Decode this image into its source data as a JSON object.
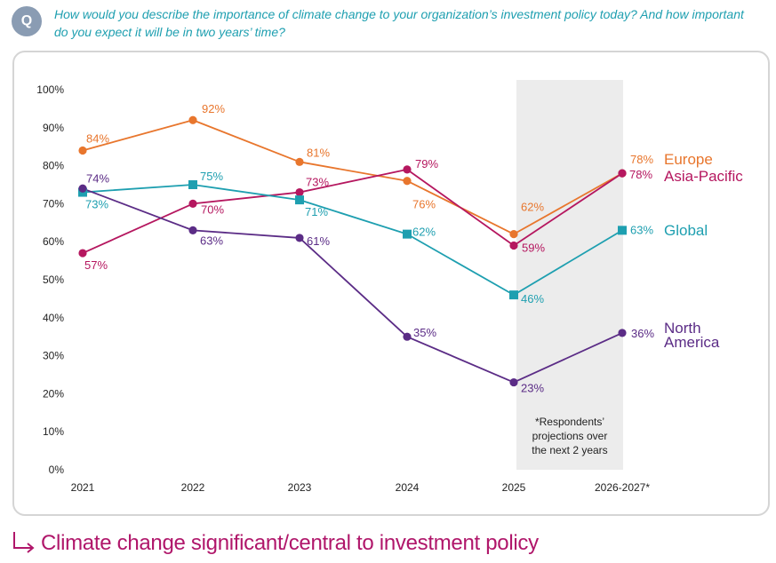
{
  "header": {
    "badge": "Q",
    "question": "How would you describe the importance of climate change to your organization’s investment policy today? And how important do you expect it will be in two years’ time?"
  },
  "footer": {
    "caption": "Climate change significant/central to investment policy"
  },
  "chart_data": {
    "type": "line",
    "categories": [
      "2021",
      "2022",
      "2023",
      "2024",
      "2025",
      "2026-2027*"
    ],
    "ylim": [
      0,
      100
    ],
    "yticks": [
      "0%",
      "10%",
      "20%",
      "30%",
      "40%",
      "50%",
      "60%",
      "70%",
      "80%",
      "90%",
      "100%"
    ],
    "series": [
      {
        "name": "Europe",
        "color": "#e8762d",
        "marker": "circle",
        "values": [
          84,
          92,
          81,
          76,
          62,
          78
        ],
        "labels": [
          "84%",
          "92%",
          "81%",
          "76%",
          "62%",
          "78%"
        ]
      },
      {
        "name": "Asia-Pacific",
        "color": "#b5175f",
        "marker": "circle",
        "values": [
          57,
          70,
          73,
          79,
          59,
          78
        ],
        "labels": [
          "57%",
          "70%",
          "73%",
          "79%",
          "59%",
          "78%"
        ]
      },
      {
        "name": "Global",
        "color": "#1e9fb0",
        "marker": "square",
        "values": [
          73,
          75,
          71,
          62,
          46,
          63
        ],
        "labels": [
          "73%",
          "75%",
          "71%",
          "62%",
          "46%",
          "63%"
        ]
      },
      {
        "name": "North America",
        "color": "#5b2c86",
        "marker": "circle",
        "values": [
          74,
          63,
          61,
          35,
          23,
          36
        ],
        "labels": [
          "74%",
          "63%",
          "61%",
          "35%",
          "23%",
          "36%"
        ]
      }
    ],
    "projection_note": [
      "*Respondents’",
      "projections over",
      "the next 2 years"
    ]
  }
}
